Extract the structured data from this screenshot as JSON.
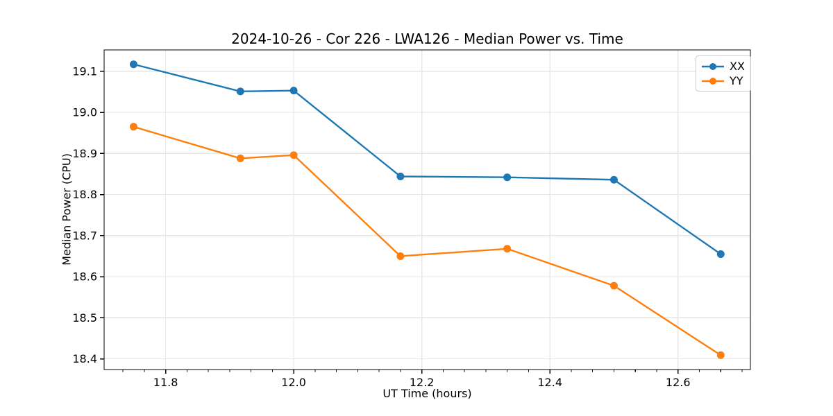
{
  "chart_data": {
    "type": "line",
    "title": "2024-10-26 - Cor 226 - LWA126 - Median Power vs. Time",
    "xlabel": "UT Time (hours)",
    "ylabel": "Median Power (CPU)",
    "x": [
      11.75,
      11.9167,
      12.0,
      12.1667,
      12.3333,
      12.5,
      12.6667
    ],
    "series": [
      {
        "name": "XX",
        "color": "#1f77b4",
        "values": [
          19.117,
          19.051,
          19.053,
          18.844,
          18.842,
          18.836,
          18.655
        ]
      },
      {
        "name": "YY",
        "color": "#ff7f0e",
        "values": [
          18.965,
          18.888,
          18.896,
          18.65,
          18.668,
          18.578,
          18.409
        ]
      }
    ],
    "xlim": [
      11.704,
      12.713
    ],
    "ylim": [
      18.374,
      19.152
    ],
    "xticks": [
      11.8,
      12.0,
      12.2,
      12.4,
      12.6
    ],
    "yticks": [
      18.4,
      18.5,
      18.6,
      18.7,
      18.8,
      18.9,
      19.0,
      19.1
    ],
    "x_minor_tick_step": 0.0333333,
    "grid": true,
    "grid_color": "#e6e6e6",
    "axis_color": "#000000",
    "legend_position": "upper right",
    "marker": "o"
  }
}
